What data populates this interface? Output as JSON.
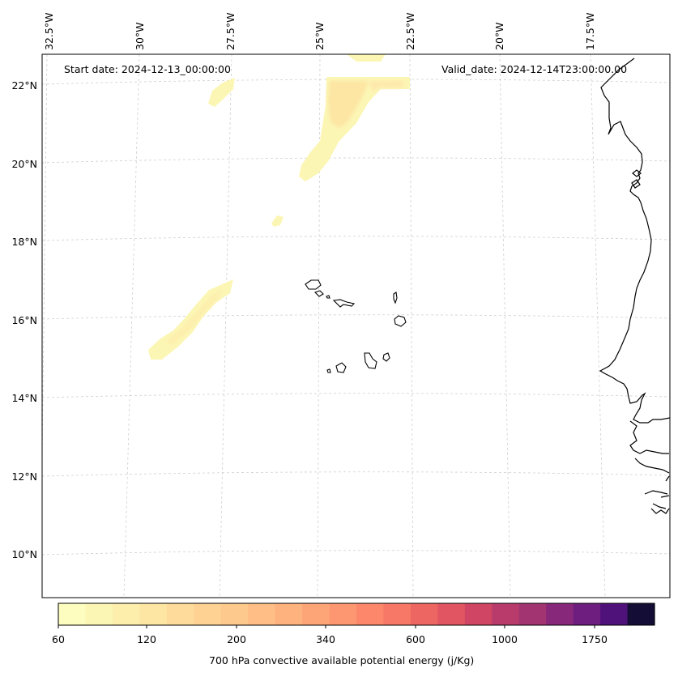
{
  "annotations": {
    "start_date": "Start date: 2024-12-13_00:00:00",
    "valid_date": "Valid_date: 2024-12-14T23:00:00.00"
  },
  "map": {
    "lat_labels": [
      "22°N",
      "20°N",
      "18°N",
      "16°N",
      "14°N",
      "12°N",
      "10°N"
    ],
    "lon_labels": [
      "32.5°W",
      "30°W",
      "27.5°W",
      "25°W",
      "22.5°W",
      "20°W",
      "17.5°W"
    ],
    "gridlines": "dashed"
  },
  "colorbar": {
    "title": "700 hPa convective available potential energy (j/Kg)",
    "tick_labels": [
      "60",
      "120",
      "200",
      "340",
      "600",
      "1000",
      "1750"
    ],
    "colormap": "magma_r",
    "colors": [
      "#fcfdbf",
      "#fcf6b5",
      "#fdeeac",
      "#fde5a3",
      "#fedb9a",
      "#fed293",
      "#fec98c",
      "#febe85",
      "#feb27e",
      "#fea578",
      "#fd9771",
      "#fc876b",
      "#f77866",
      "#ee6662",
      "#e05561",
      "#cf4563",
      "#b83b6b",
      "#a23571",
      "#88287a",
      "#6e1e7e",
      "#4f127b",
      "#140e36"
    ]
  }
}
